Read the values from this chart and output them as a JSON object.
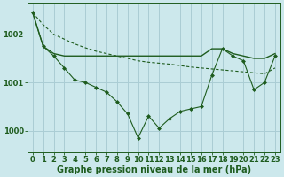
{
  "background_color": "#cce8ec",
  "grid_color": "#aacdd4",
  "line_color": "#1e5c1e",
  "xlabel": "Graphe pression niveau de la mer (hPa)",
  "xlabel_fontsize": 7,
  "tick_fontsize": 6,
  "ylim": [
    999.55,
    1002.65
  ],
  "xlim": [
    -0.5,
    23.5
  ],
  "yticks": [
    1000,
    1001,
    1002
  ],
  "xticks": [
    0,
    1,
    2,
    3,
    4,
    5,
    6,
    7,
    8,
    9,
    10,
    11,
    12,
    13,
    14,
    15,
    16,
    17,
    18,
    19,
    20,
    21,
    22,
    23
  ],
  "line1_x": [
    0,
    1,
    2,
    3,
    4,
    5,
    6,
    7,
    8,
    9,
    10,
    11,
    12,
    13,
    14,
    15,
    16,
    17,
    18,
    19,
    20,
    21,
    22,
    23
  ],
  "line1_y": [
    1002.45,
    1001.75,
    1001.6,
    1001.55,
    1001.55,
    1001.55,
    1001.55,
    1001.55,
    1001.55,
    1001.55,
    1001.55,
    1001.55,
    1001.55,
    1001.55,
    1001.55,
    1001.55,
    1001.55,
    1001.7,
    1001.7,
    1001.6,
    1001.55,
    1001.5,
    1001.5,
    1001.6
  ],
  "line2_x": [
    0,
    1,
    2,
    3,
    4,
    5,
    6,
    7,
    8,
    9,
    10,
    11,
    12,
    13,
    14,
    15,
    16,
    17,
    18,
    19,
    20,
    21,
    22,
    23
  ],
  "line2_y": [
    1002.45,
    1002.2,
    1002.0,
    1001.9,
    1001.8,
    1001.72,
    1001.65,
    1001.6,
    1001.55,
    1001.5,
    1001.45,
    1001.42,
    1001.4,
    1001.38,
    1001.35,
    1001.32,
    1001.3,
    1001.28,
    1001.26,
    1001.24,
    1001.22,
    1001.2,
    1001.18,
    1001.3
  ],
  "line3_x": [
    0,
    1,
    2,
    3,
    4,
    5,
    6,
    7,
    8,
    9,
    10,
    11,
    12,
    13,
    14,
    15,
    16,
    17,
    18,
    19,
    20,
    21,
    22,
    23
  ],
  "line3_y": [
    1002.45,
    1001.75,
    1001.55,
    1001.3,
    1001.05,
    1001.0,
    1000.9,
    1000.8,
    1000.6,
    1000.35,
    999.85,
    1000.3,
    1000.05,
    1000.25,
    1000.4,
    1000.45,
    1000.5,
    1001.15,
    1001.7,
    1001.55,
    1001.45,
    1000.85,
    1001.0,
    1001.55
  ]
}
